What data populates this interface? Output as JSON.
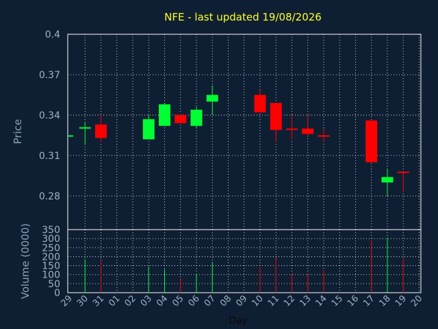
{
  "chart_data": {
    "type": "candlestick",
    "title": "NFE - last updated 19/08/2026",
    "xlabel": "Day",
    "x": [
      "29",
      "30",
      "31",
      "01",
      "02",
      "03",
      "04",
      "05",
      "06",
      "07",
      "08",
      "09",
      "10",
      "11",
      "12",
      "13",
      "14",
      "15",
      "16",
      "17",
      "18",
      "19",
      "20"
    ],
    "price_panel": {
      "ylabel": "Price",
      "ylim": [
        0.255,
        0.4
      ],
      "yticks": [
        "0.4",
        "0.37",
        "0.34",
        "0.31",
        "0.28"
      ],
      "ytick_values": [
        0.4,
        0.37,
        0.34,
        0.31,
        0.28
      ],
      "grid": true,
      "candles": [
        {
          "day": "29",
          "open": 0.325,
          "close": 0.325,
          "high": 0.325,
          "low": 0.325
        },
        {
          "day": "30",
          "open": 0.33,
          "close": 0.331,
          "high": 0.335,
          "low": 0.318
        },
        {
          "day": "31",
          "open": 0.333,
          "close": 0.323,
          "high": 0.34,
          "low": 0.32
        },
        {
          "day": "03",
          "open": 0.322,
          "close": 0.337,
          "high": 0.34,
          "low": 0.322
        },
        {
          "day": "04",
          "open": 0.332,
          "close": 0.348,
          "high": 0.349,
          "low": 0.332
        },
        {
          "day": "05",
          "open": 0.34,
          "close": 0.334,
          "high": 0.341,
          "low": 0.334
        },
        {
          "day": "06",
          "open": 0.332,
          "close": 0.344,
          "high": 0.346,
          "low": 0.33
        },
        {
          "day": "07",
          "open": 0.35,
          "close": 0.355,
          "high": 0.362,
          "low": 0.34
        },
        {
          "day": "10",
          "open": 0.355,
          "close": 0.342,
          "high": 0.359,
          "low": 0.342
        },
        {
          "day": "11",
          "open": 0.349,
          "close": 0.329,
          "high": 0.349,
          "low": 0.32
        },
        {
          "day": "12",
          "open": 0.33,
          "close": 0.329,
          "high": 0.34,
          "low": 0.322
        },
        {
          "day": "13",
          "open": 0.33,
          "close": 0.326,
          "high": 0.34,
          "low": 0.325
        },
        {
          "day": "14",
          "open": 0.325,
          "close": 0.324,
          "high": 0.33,
          "low": 0.32
        },
        {
          "day": "17",
          "open": 0.336,
          "close": 0.305,
          "high": 0.336,
          "low": 0.305
        },
        {
          "day": "18",
          "open": 0.29,
          "close": 0.294,
          "high": 0.3,
          "low": 0.28
        },
        {
          "day": "19",
          "open": 0.298,
          "close": 0.297,
          "high": 0.298,
          "low": 0.283
        }
      ],
      "up_color": "#00ff33",
      "down_color": "#ff0000"
    },
    "volume_panel": {
      "ylabel": "Volume (0000)",
      "ylim": [
        0,
        350
      ],
      "yticks": [
        "350",
        "300",
        "250",
        "200",
        "150",
        "100",
        "50",
        "0"
      ],
      "ytick_values": [
        350,
        300,
        250,
        200,
        150,
        100,
        50,
        0
      ],
      "bars": [
        {
          "day": "30",
          "value": 185,
          "direction": "up"
        },
        {
          "day": "31",
          "value": 175,
          "direction": "down"
        },
        {
          "day": "03",
          "value": 145,
          "direction": "up"
        },
        {
          "day": "04",
          "value": 130,
          "direction": "up"
        },
        {
          "day": "05",
          "value": 80,
          "direction": "down"
        },
        {
          "day": "06",
          "value": 105,
          "direction": "up"
        },
        {
          "day": "07",
          "value": 170,
          "direction": "up"
        },
        {
          "day": "10",
          "value": 140,
          "direction": "down"
        },
        {
          "day": "11",
          "value": 195,
          "direction": "down"
        },
        {
          "day": "12",
          "value": 105,
          "direction": "down"
        },
        {
          "day": "13",
          "value": 105,
          "direction": "down"
        },
        {
          "day": "14",
          "value": 125,
          "direction": "down"
        },
        {
          "day": "17",
          "value": 290,
          "direction": "down"
        },
        {
          "day": "18",
          "value": 305,
          "direction": "up"
        },
        {
          "day": "19",
          "value": 185,
          "direction": "down"
        }
      ]
    },
    "colors": {
      "background": "#0f1f33",
      "plot_border": "#ffffff",
      "grid": "#ffffff",
      "title": "#ffff2a",
      "tick_text": "#9fb2c6"
    }
  }
}
